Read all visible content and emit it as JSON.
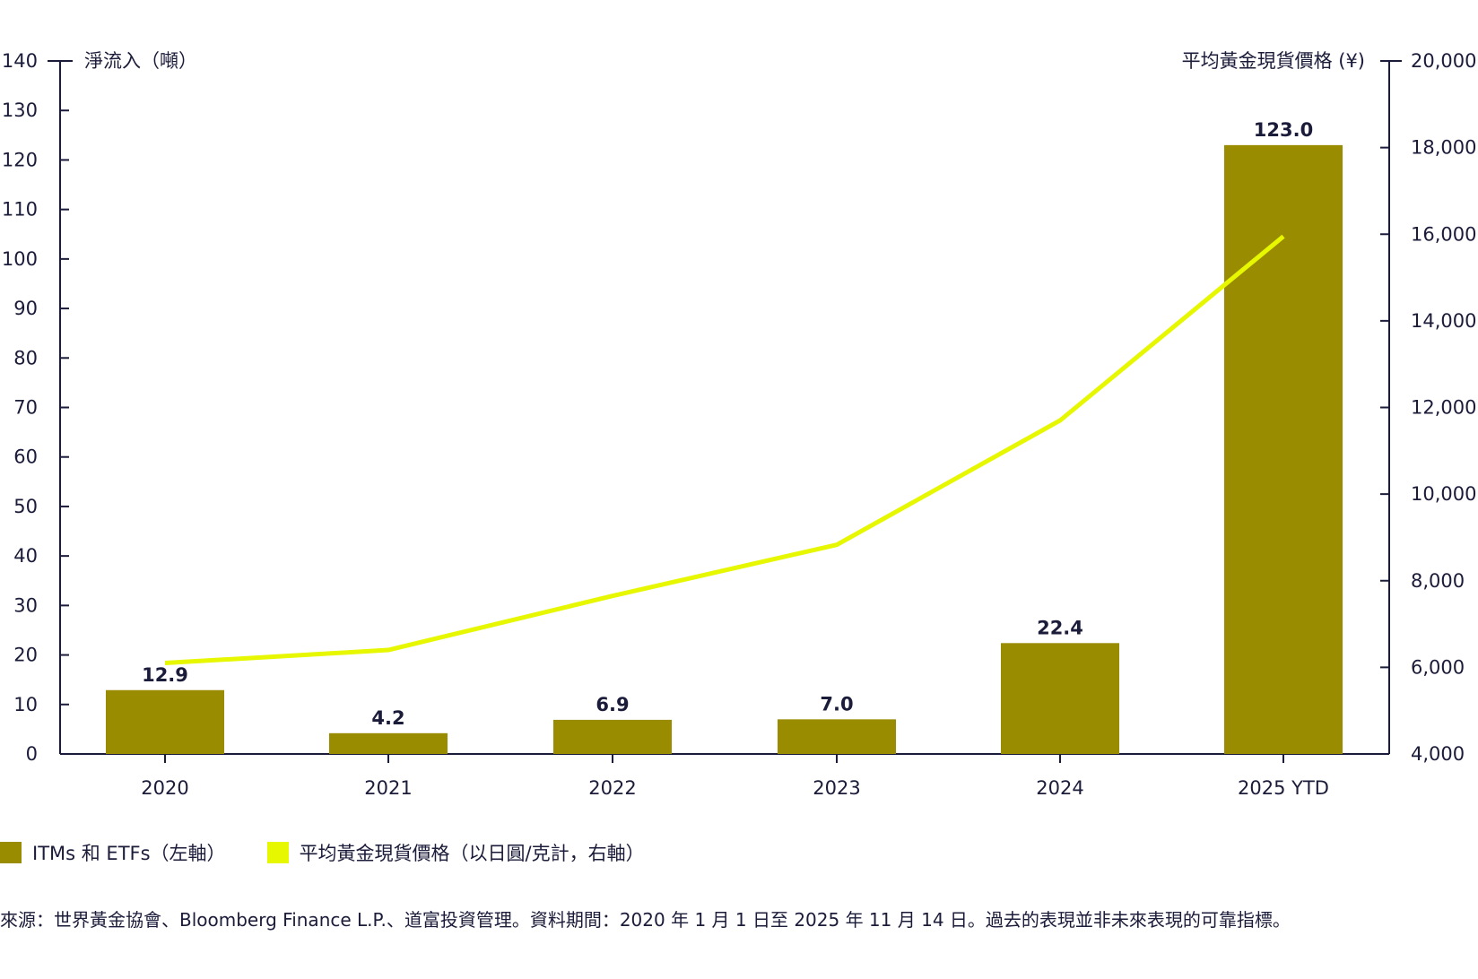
{
  "chart_data": {
    "type": "bar+line",
    "categories": [
      "2020",
      "2021",
      "2022",
      "2023",
      "2024",
      "2025 YTD"
    ],
    "series": [
      {
        "name": "ITMs 和 ETFs（左軸）",
        "type": "bar",
        "axis": "left",
        "color": "#9a8c00",
        "values": [
          12.9,
          4.2,
          6.9,
          7.0,
          22.4,
          123.0
        ],
        "labels": [
          "12.9",
          "4.2",
          "6.9",
          "7.0",
          "22.4",
          "123.0"
        ]
      },
      {
        "name": "平均黃金現貨價格（以日圓/克計，右軸）",
        "type": "line",
        "axis": "right",
        "color": "#e6f700",
        "values": [
          6100,
          6400,
          7650,
          8830,
          11700,
          15950
        ]
      }
    ],
    "left_axis": {
      "label": "淨流入（噸）",
      "range": [
        0,
        140
      ],
      "ticks": [
        "0",
        "10",
        "20",
        "30",
        "40",
        "50",
        "60",
        "70",
        "80",
        "90",
        "100",
        "110",
        "120",
        "130",
        "140"
      ]
    },
    "right_axis": {
      "label": "平均黃金現貨價格 (¥)",
      "range": [
        4000,
        20000
      ],
      "ticks": [
        "4,000",
        "6,000",
        "8,000",
        "10,000",
        "12,000",
        "14,000",
        "16,000",
        "18,000",
        "20,000"
      ]
    },
    "legend": "bottom-left",
    "grid": false
  },
  "source": "來源：世界黃金協會、Bloomberg Finance L.P.、道富投資管理。資料期間：2020 年 1 月 1 日至 2025 年 11 月 14 日。過去的表現並非未來表現的可靠指標。"
}
